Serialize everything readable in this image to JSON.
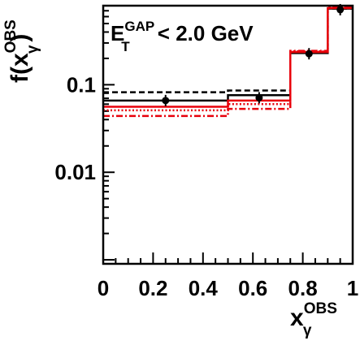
{
  "chart_data": {
    "type": "line",
    "xlabel": {
      "main": "x",
      "sub": "γ",
      "sup": "OBS"
    },
    "ylabel": {
      "prefix": "f(x",
      "sub": "γ",
      "sup": "OBS",
      "suffix": ")"
    },
    "annotation": {
      "main": "E",
      "sub": "T",
      "sup": "GAP",
      "rest": " < 2.0 GeV"
    },
    "x_range": [
      0,
      1
    ],
    "y_range": [
      0.0009,
      0.8
    ],
    "y_scale": "log",
    "x_ticks": [
      {
        "value": 0,
        "label": "0"
      },
      {
        "value": 0.2,
        "label": "0.2"
      },
      {
        "value": 0.4,
        "label": "0.4"
      },
      {
        "value": 0.6,
        "label": "0.6"
      },
      {
        "value": 0.8,
        "label": "0.8"
      },
      {
        "value": 1,
        "label": "1"
      }
    ],
    "y_ticks": [
      {
        "value": 0.01,
        "label": "0.01"
      },
      {
        "value": 0.1,
        "label": "0.1"
      }
    ],
    "bin_edges": [
      0,
      0.5,
      0.75,
      0.9,
      1
    ],
    "points": {
      "x": [
        0.25,
        0.625,
        0.825,
        0.95
      ],
      "y": [
        0.066,
        0.071,
        0.226,
        0.72
      ],
      "color": "#000000"
    },
    "series": [
      {
        "values": [
          0.082,
          0.086,
          0.235,
          0.74
        ],
        "color": "#000000",
        "dash": "dashed"
      },
      {
        "values": [
          0.066,
          0.076,
          0.23,
          0.74
        ],
        "color": "#000000",
        "dash": "solid"
      },
      {
        "values": [
          0.056,
          0.066,
          0.236,
          0.75
        ],
        "color": "#e8000b",
        "dash": "solid"
      },
      {
        "values": [
          0.051,
          0.06,
          0.24,
          0.76
        ],
        "color": "#e8000b",
        "dash": "dotted"
      },
      {
        "values": [
          0.044,
          0.053,
          0.244,
          0.77
        ],
        "color": "#e8000b",
        "dash": "dashdot"
      }
    ]
  }
}
